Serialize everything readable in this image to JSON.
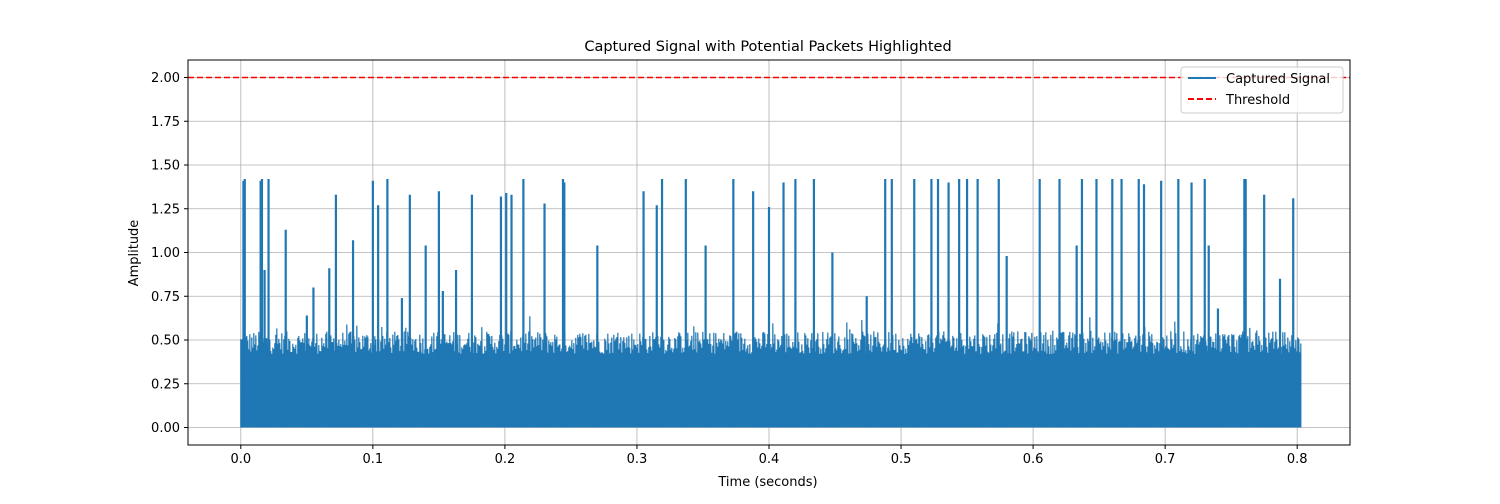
{
  "chart_data": {
    "type": "line",
    "title": "Captured Signal with Potential Packets Highlighted",
    "xlabel": "Time (seconds)",
    "ylabel": "Amplitude",
    "xlim": [
      -0.04,
      0.84
    ],
    "ylim": [
      -0.1,
      2.1
    ],
    "xticks": [
      0.0,
      0.1,
      0.2,
      0.3,
      0.4,
      0.5,
      0.6,
      0.7,
      0.8
    ],
    "xtick_labels": [
      "0.0",
      "0.1",
      "0.2",
      "0.3",
      "0.4",
      "0.5",
      "0.6",
      "0.7",
      "0.8"
    ],
    "yticks": [
      0.0,
      0.25,
      0.5,
      0.75,
      1.0,
      1.25,
      1.5,
      1.75,
      2.0
    ],
    "ytick_labels": [
      "0.00",
      "0.25",
      "0.50",
      "0.75",
      "1.00",
      "1.25",
      "1.50",
      "1.75",
      "2.00"
    ],
    "grid": true,
    "legend_position": "top-right",
    "series": [
      {
        "name": "Captured Signal",
        "color": "#1f77b4",
        "style": "solid",
        "x_range": [
          0.0,
          0.803
        ],
        "noise_floor_max": 0.55,
        "peaks": [
          [
            0.002,
            1.41
          ],
          [
            0.003,
            1.42
          ],
          [
            0.015,
            1.41
          ],
          [
            0.016,
            1.42
          ],
          [
            0.018,
            0.9
          ],
          [
            0.021,
            1.42
          ],
          [
            0.034,
            1.13
          ],
          [
            0.05,
            0.64
          ],
          [
            0.055,
            0.8
          ],
          [
            0.067,
            0.91
          ],
          [
            0.072,
            1.33
          ],
          [
            0.085,
            1.07
          ],
          [
            0.1,
            1.41
          ],
          [
            0.104,
            1.27
          ],
          [
            0.111,
            1.42
          ],
          [
            0.122,
            0.74
          ],
          [
            0.128,
            1.33
          ],
          [
            0.14,
            1.04
          ],
          [
            0.15,
            1.35
          ],
          [
            0.153,
            0.78
          ],
          [
            0.163,
            0.9
          ],
          [
            0.175,
            1.33
          ],
          [
            0.197,
            1.32
          ],
          [
            0.201,
            1.34
          ],
          [
            0.205,
            1.33
          ],
          [
            0.214,
            1.42
          ],
          [
            0.23,
            1.28
          ],
          [
            0.244,
            1.42
          ],
          [
            0.245,
            1.4
          ],
          [
            0.27,
            1.04
          ],
          [
            0.305,
            1.35
          ],
          [
            0.315,
            1.27
          ],
          [
            0.319,
            1.42
          ],
          [
            0.337,
            1.42
          ],
          [
            0.352,
            1.04
          ],
          [
            0.373,
            1.42
          ],
          [
            0.388,
            1.35
          ],
          [
            0.4,
            1.26
          ],
          [
            0.411,
            1.4
          ],
          [
            0.42,
            1.42
          ],
          [
            0.434,
            1.42
          ],
          [
            0.448,
            1.0
          ],
          [
            0.474,
            0.75
          ],
          [
            0.488,
            1.42
          ],
          [
            0.493,
            1.42
          ],
          [
            0.51,
            1.42
          ],
          [
            0.523,
            1.42
          ],
          [
            0.528,
            1.42
          ],
          [
            0.536,
            1.4
          ],
          [
            0.544,
            1.42
          ],
          [
            0.55,
            1.42
          ],
          [
            0.558,
            1.42
          ],
          [
            0.574,
            1.42
          ],
          [
            0.58,
            0.98
          ],
          [
            0.605,
            1.42
          ],
          [
            0.62,
            1.42
          ],
          [
            0.633,
            1.04
          ],
          [
            0.637,
            1.42
          ],
          [
            0.648,
            1.42
          ],
          [
            0.66,
            1.42
          ],
          [
            0.667,
            1.42
          ],
          [
            0.68,
            1.42
          ],
          [
            0.684,
            1.39
          ],
          [
            0.697,
            1.41
          ],
          [
            0.71,
            1.42
          ],
          [
            0.72,
            1.4
          ],
          [
            0.73,
            1.42
          ],
          [
            0.733,
            1.04
          ],
          [
            0.74,
            0.68
          ],
          [
            0.76,
            1.42
          ],
          [
            0.761,
            1.42
          ],
          [
            0.775,
            1.33
          ],
          [
            0.787,
            0.85
          ],
          [
            0.797,
            1.31
          ]
        ]
      },
      {
        "name": "Threshold",
        "color": "#ff0000",
        "style": "dashed",
        "y": 2.0
      }
    ]
  }
}
